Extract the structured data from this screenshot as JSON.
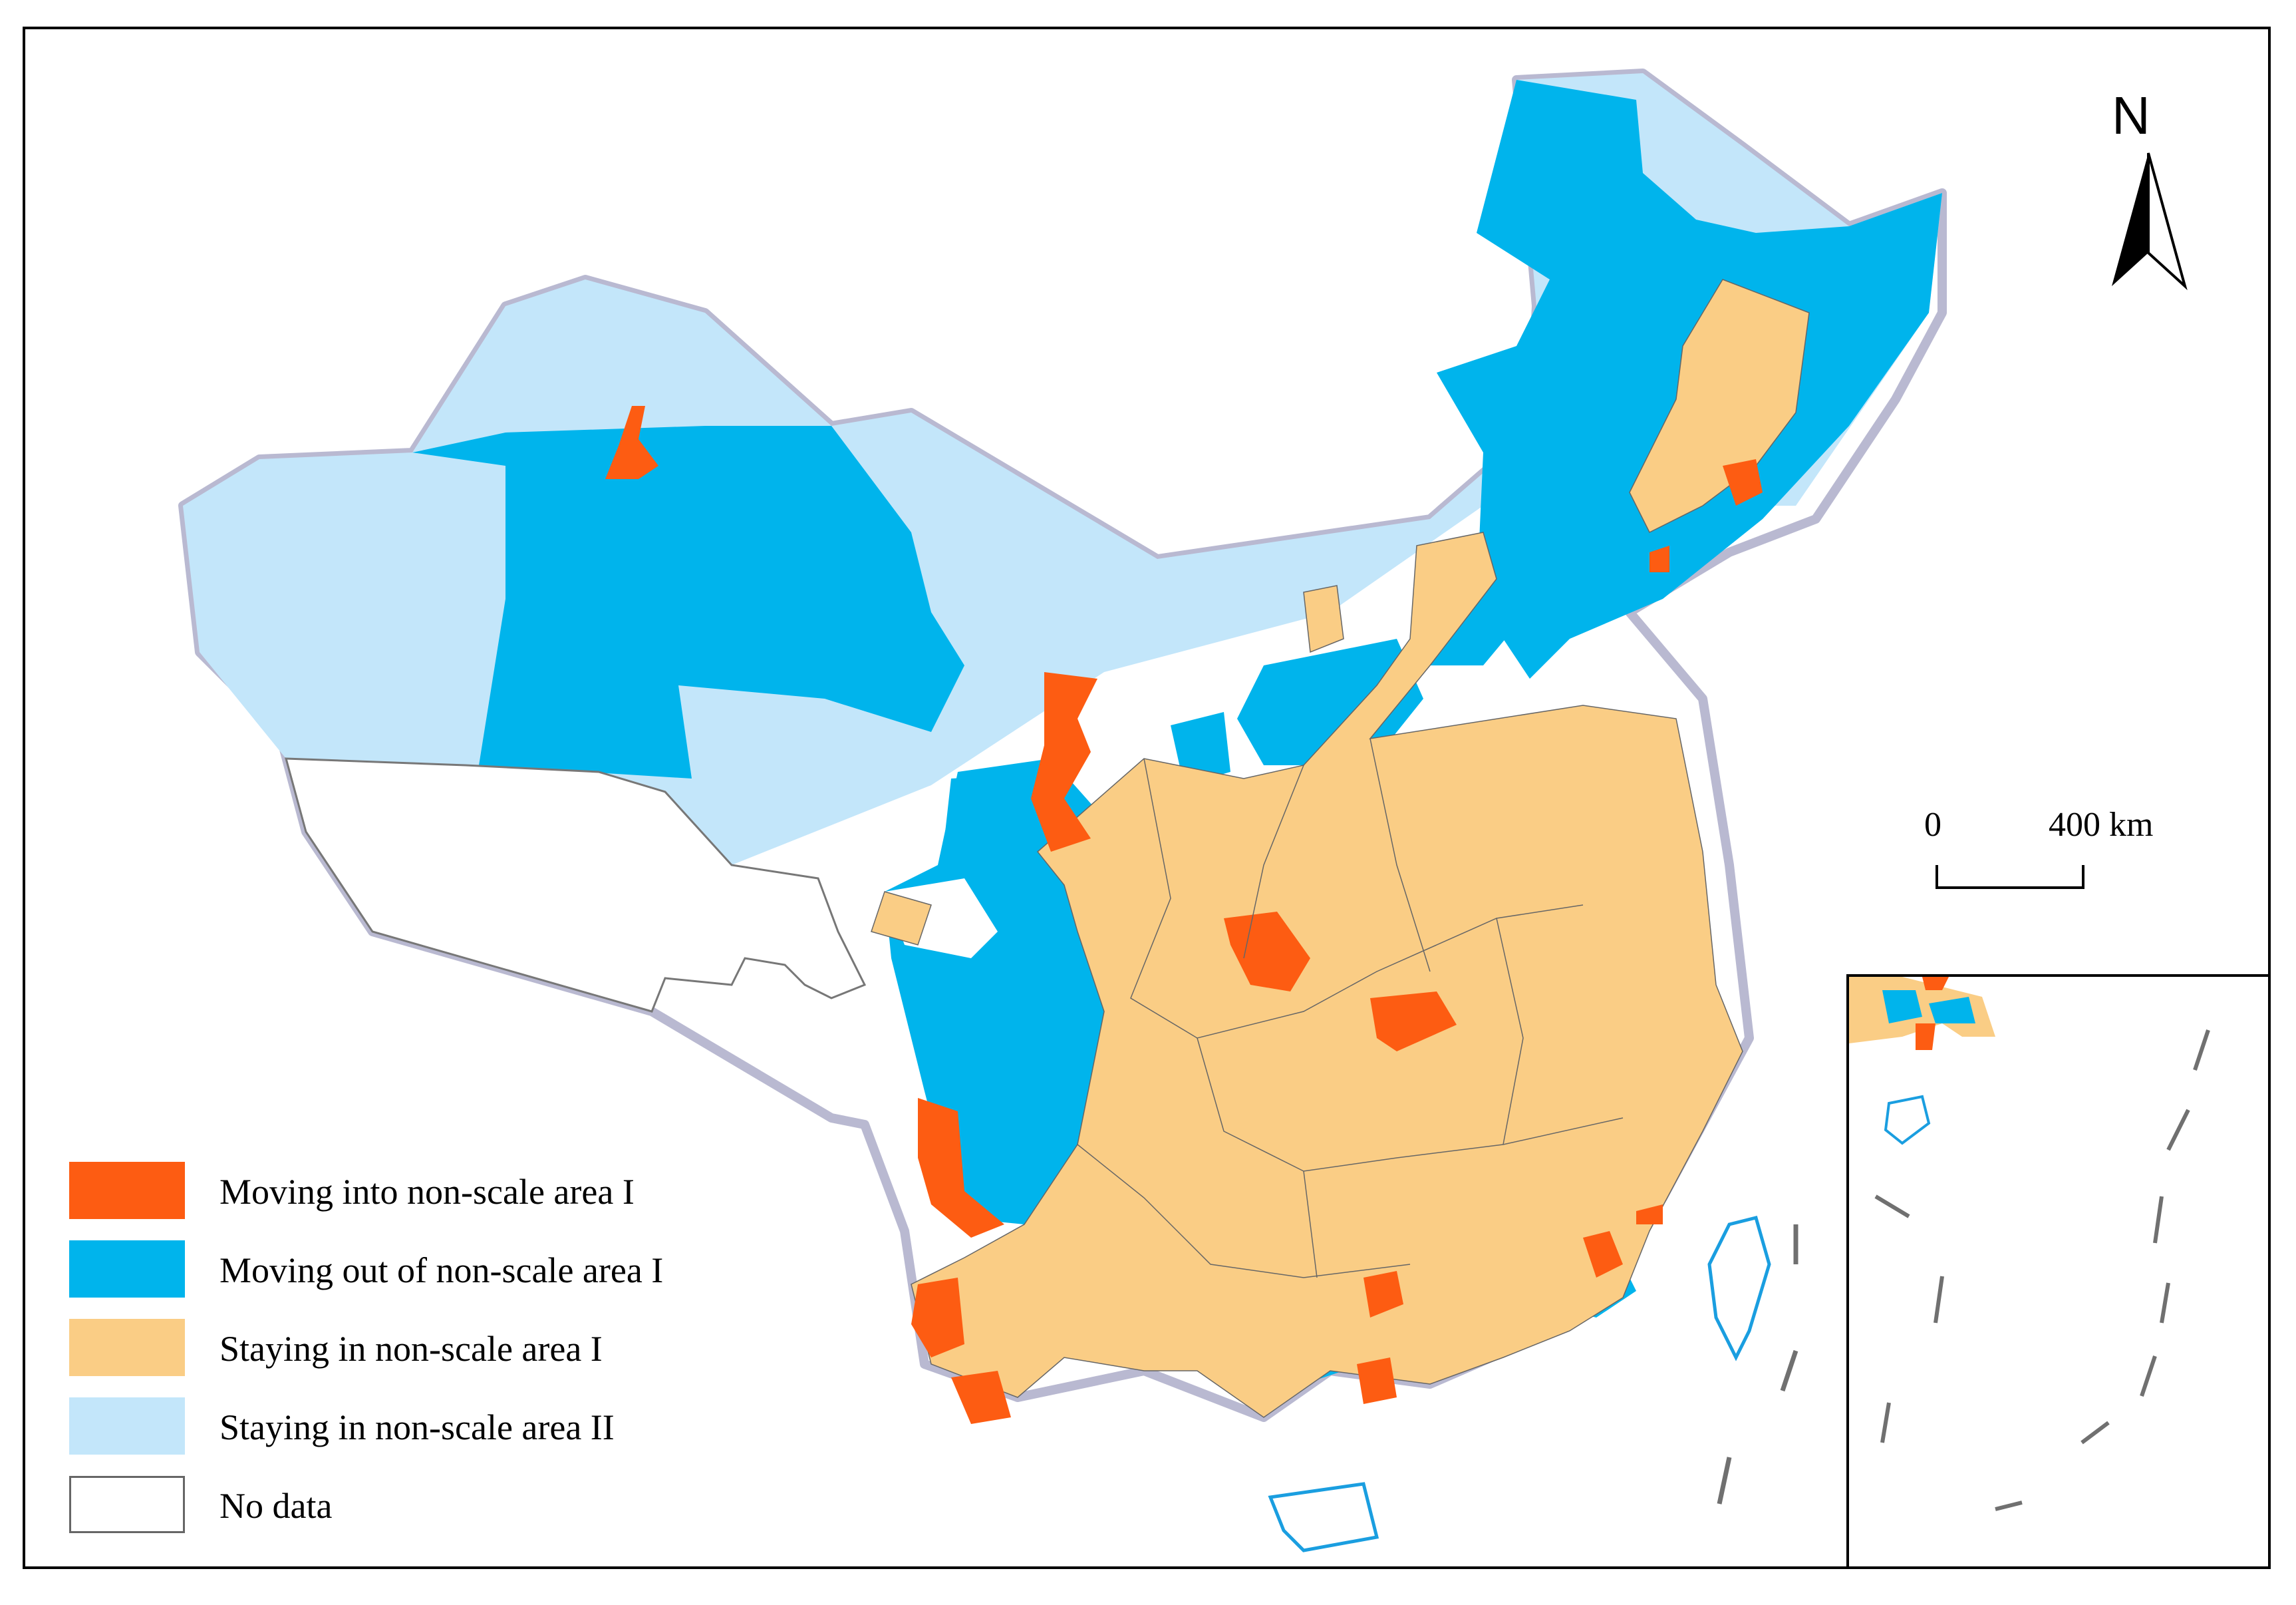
{
  "colors": {
    "moving_into": "#fd5c12",
    "moving_out": "#00b4ec",
    "staying_I": "#facd85",
    "staying_II": "#c3e6fa",
    "no_data": "#ffffff",
    "boundary": "#b9b9d1",
    "coast": "#1a9ee0"
  },
  "north_arrow": {
    "label": "N"
  },
  "scale_bar": {
    "start": "0",
    "end": "400 km"
  },
  "legend": {
    "items": [
      {
        "label": "Moving into non-scale area I",
        "color": "#fd5c12"
      },
      {
        "label": "Moving out of non-scale area I",
        "color": "#00b4ec"
      },
      {
        "label": "Staying in non-scale area I",
        "color": "#facd85"
      },
      {
        "label": "Staying in non-scale area II",
        "color": "#c3e6fa"
      },
      {
        "label": "No data",
        "color": "#ffffff"
      }
    ]
  }
}
